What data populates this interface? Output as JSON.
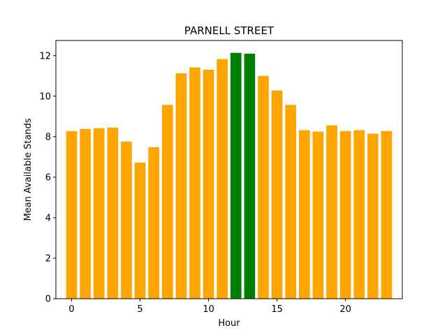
{
  "chart_data": {
    "type": "bar",
    "title": "PARNELL STREET",
    "xlabel": "Hour",
    "ylabel": "Mean Available Stands",
    "x": [
      0,
      1,
      2,
      3,
      4,
      5,
      6,
      7,
      8,
      9,
      10,
      11,
      12,
      13,
      14,
      15,
      16,
      17,
      18,
      19,
      20,
      21,
      22,
      23
    ],
    "values": [
      8.28,
      8.38,
      8.42,
      8.45,
      7.76,
      6.72,
      7.48,
      9.57,
      11.13,
      11.42,
      11.31,
      11.83,
      12.14,
      12.1,
      11.0,
      10.28,
      9.57,
      8.32,
      8.25,
      8.56,
      8.28,
      8.32,
      8.15,
      8.28
    ],
    "highlight_x": [
      12,
      13
    ],
    "colors": {
      "default": "#ffa500",
      "highlight": "#008000"
    },
    "xlim": [
      -1.15,
      24.15
    ],
    "ylim": [
      0,
      12.75
    ],
    "xticks": [
      0,
      5,
      10,
      15,
      20
    ],
    "yticks": [
      0,
      2,
      4,
      6,
      8,
      10,
      12
    ],
    "grid": false,
    "legend": "none"
  }
}
